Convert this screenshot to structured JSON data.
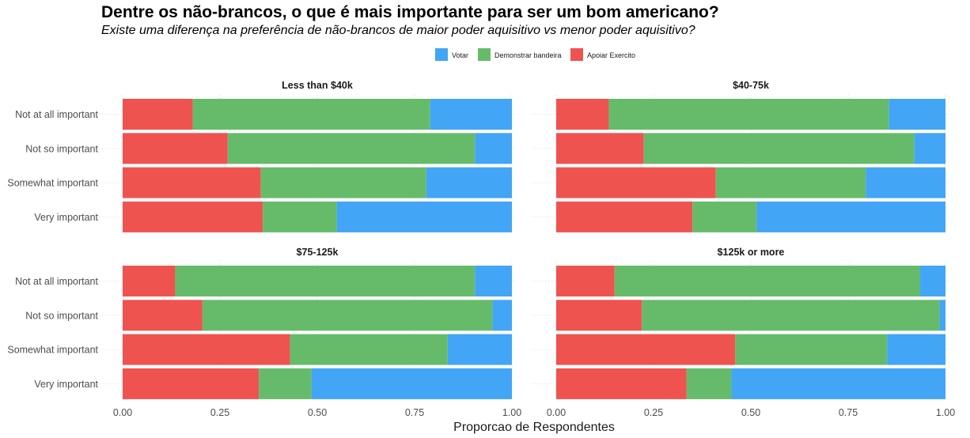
{
  "title": "Dentre os não-brancos, o que é mais importante para ser um bom americano?",
  "subtitle": "Existe uma diferença na preferência de não-brancos de maior poder aquisitivo vs menor poder aquisitivo?",
  "chart_data": {
    "type": "bar",
    "orientation": "horizontal",
    "stacked": true,
    "xlabel": "Proporcao de Respondentes",
    "ylabel": "",
    "xlim": [
      0,
      1
    ],
    "xticks": [
      "0.00",
      "0.25",
      "0.50",
      "0.75",
      "1.00"
    ],
    "legend_position": "top",
    "legend": [
      {
        "name": "Votar",
        "color": "#42A5F5"
      },
      {
        "name": "Demonstrar bandeira",
        "color": "#66BB6A"
      },
      {
        "name": "Apoiar Exercito",
        "color": "#EF5350"
      }
    ],
    "categories": [
      "Not at all important",
      "Not so important",
      "Somewhat important",
      "Very important"
    ],
    "panels": [
      {
        "title": "Less than $40k",
        "series": [
          {
            "name": "Apoiar Exercito",
            "values": [
              0.18,
              0.27,
              0.355,
              0.36
            ]
          },
          {
            "name": "Demonstrar bandeira",
            "values": [
              0.61,
              0.635,
              0.425,
              0.19
            ]
          },
          {
            "name": "Votar",
            "values": [
              0.21,
              0.095,
              0.22,
              0.45
            ]
          }
        ]
      },
      {
        "title": "$40-75k",
        "series": [
          {
            "name": "Apoiar Exercito",
            "values": [
              0.135,
              0.225,
              0.41,
              0.35
            ]
          },
          {
            "name": "Demonstrar bandeira",
            "values": [
              0.72,
              0.695,
              0.385,
              0.165
            ]
          },
          {
            "name": "Votar",
            "values": [
              0.145,
              0.08,
              0.205,
              0.485
            ]
          }
        ]
      },
      {
        "title": "$75-125k",
        "series": [
          {
            "name": "Apoiar Exercito",
            "values": [
              0.135,
              0.205,
              0.43,
              0.35
            ]
          },
          {
            "name": "Demonstrar bandeira",
            "values": [
              0.77,
              0.745,
              0.405,
              0.135
            ]
          },
          {
            "name": "Votar",
            "values": [
              0.095,
              0.05,
              0.165,
              0.515
            ]
          }
        ]
      },
      {
        "title": "$125k or more",
        "series": [
          {
            "name": "Apoiar Exercito",
            "values": [
              0.15,
              0.22,
              0.46,
              0.335
            ]
          },
          {
            "name": "Demonstrar bandeira",
            "values": [
              0.785,
              0.765,
              0.39,
              0.115
            ]
          },
          {
            "name": "Votar",
            "values": [
              0.065,
              0.015,
              0.15,
              0.55
            ]
          }
        ]
      }
    ]
  }
}
